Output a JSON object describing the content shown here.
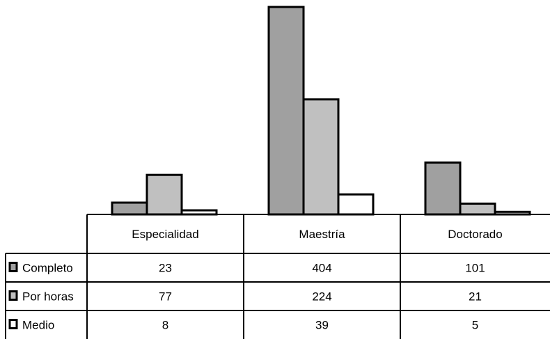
{
  "chart_data": {
    "type": "bar",
    "categories": [
      "Especialidad",
      "Maestría",
      "Doctorado"
    ],
    "series": [
      {
        "name": "Completo",
        "values": [
          23,
          404,
          101
        ],
        "color": "#a0a0a0"
      },
      {
        "name": "Por horas",
        "values": [
          77,
          224,
          21
        ],
        "color": "#c0c0c0"
      },
      {
        "name": "Medio",
        "values": [
          8,
          39,
          5
        ],
        "color": "#ffffff"
      }
    ],
    "ylim": [
      0,
      404
    ],
    "grid": false,
    "legend_placement": "data-table",
    "title": "",
    "xlabel": "",
    "ylabel": ""
  }
}
